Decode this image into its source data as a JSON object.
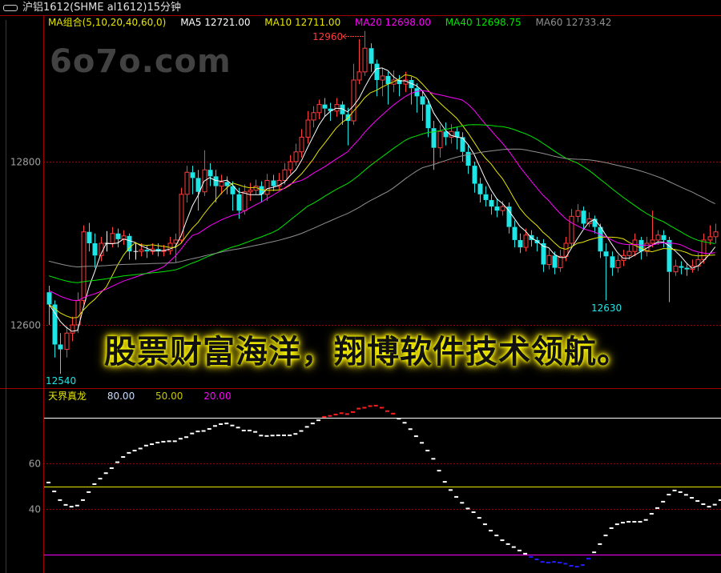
{
  "window": {
    "title": "沪铝1612(SHME al1612)15分钟",
    "icon": "link-icon"
  },
  "watermark": "6o7o.com",
  "banner": "股票财富海洋，翔博软件技术领航。",
  "ma_legend": {
    "group": {
      "label": "MA组合(5,10,20,40,60,0)",
      "color": "#e6e600"
    },
    "items": [
      {
        "label": "MA5 12721.00",
        "color": "#ffffff"
      },
      {
        "label": "MA10 12711.00",
        "color": "#e6e600"
      },
      {
        "label": "MA20 12698.00",
        "color": "#ff00ff"
      },
      {
        "label": "MA40 12698.75",
        "color": "#00e600"
      },
      {
        "label": "MA60 12733.42",
        "color": "#909090"
      }
    ]
  },
  "indicator_legend": {
    "name": {
      "label": "天界真龙",
      "color": "#e6e600"
    },
    "items": [
      {
        "label": "80.00",
        "color": "#c8dcff"
      },
      {
        "label": "50.00",
        "color": "#c8c800"
      },
      {
        "label": "20.00",
        "color": "#ff00ff"
      }
    ]
  },
  "chart_data": [
    {
      "type": "candlestick",
      "title": "沪铝1612(SHME al1612)15分钟",
      "y_ticks": [
        "12800",
        "12600"
      ],
      "ylim": [
        12540,
        12965
      ],
      "grid": "dotted lines at y ticks",
      "colors": {
        "up": "#ff3c3c",
        "down": "#1ee6e6",
        "flat": "#ffffff"
      },
      "ma_periods": [
        5,
        10,
        20,
        40,
        60
      ],
      "ma_colors": [
        "#ffffff",
        "#e6e600",
        "#ff00ff",
        "#00e600",
        "#909090"
      ],
      "annotations": [
        {
          "text": "12960",
          "price": 12960,
          "color": "#ff3c3c"
        },
        {
          "text": "12630",
          "price": 12630,
          "color": "#1ee6e6"
        },
        {
          "text": "12540",
          "price": 12540,
          "color": "#1ee6e6"
        }
      ],
      "ohlc": [
        [
          12640,
          12648,
          12600,
          12625
        ],
        [
          12625,
          12630,
          12560,
          12576
        ],
        [
          12576,
          12590,
          12540,
          12570
        ],
        [
          12570,
          12598,
          12560,
          12590
        ],
        [
          12590,
          12610,
          12580,
          12600
        ],
        [
          12600,
          12640,
          12590,
          12630
        ],
        [
          12630,
          12722,
          12625,
          12714
        ],
        [
          12714,
          12725,
          12690,
          12700
        ],
        [
          12700,
          12712,
          12670,
          12685
        ],
        [
          12685,
          12708,
          12678,
          12700
        ],
        [
          12700,
          12715,
          12690,
          12700
        ],
        [
          12700,
          12720,
          12695,
          12712
        ],
        [
          12712,
          12718,
          12695,
          12705
        ],
        [
          12705,
          12716,
          12698,
          12709
        ],
        [
          12709,
          12712,
          12680,
          12690
        ],
        [
          12690,
          12700,
          12680,
          12690
        ],
        [
          12690,
          12700,
          12684,
          12692
        ],
        [
          12692,
          12698,
          12682,
          12690
        ],
        [
          12690,
          12700,
          12686,
          12693
        ],
        [
          12693,
          12700,
          12684,
          12690
        ],
        [
          12690,
          12698,
          12684,
          12691
        ],
        [
          12691,
          12708,
          12686,
          12700
        ],
        [
          12700,
          12712,
          12676,
          12704
        ],
        [
          12704,
          12768,
          12700,
          12760
        ],
        [
          12760,
          12795,
          12750,
          12787
        ],
        [
          12787,
          12795,
          12760,
          12780
        ],
        [
          12780,
          12790,
          12740,
          12763
        ],
        [
          12763,
          12814,
          12758,
          12790
        ],
        [
          12790,
          12798,
          12770,
          12782
        ],
        [
          12782,
          12790,
          12750,
          12770
        ],
        [
          12770,
          12784,
          12760,
          12775
        ],
        [
          12775,
          12782,
          12760,
          12770
        ],
        [
          12770,
          12776,
          12740,
          12760
        ],
        [
          12760,
          12768,
          12730,
          12740
        ],
        [
          12740,
          12772,
          12735,
          12763
        ],
        [
          12763,
          12774,
          12752,
          12765
        ],
        [
          12765,
          12778,
          12760,
          12770
        ],
        [
          12770,
          12776,
          12750,
          12760
        ],
        [
          12760,
          12785,
          12752,
          12777
        ],
        [
          12777,
          12784,
          12764,
          12770
        ],
        [
          12770,
          12786,
          12766,
          12777
        ],
        [
          12777,
          12798,
          12772,
          12790
        ],
        [
          12790,
          12808,
          12785,
          12800
        ],
        [
          12800,
          12822,
          12795,
          12812
        ],
        [
          12812,
          12840,
          12805,
          12830
        ],
        [
          12830,
          12862,
          12822,
          12851
        ],
        [
          12851,
          12868,
          12842,
          12860
        ],
        [
          12860,
          12876,
          12852,
          12870
        ],
        [
          12870,
          12878,
          12855,
          12865
        ],
        [
          12865,
          12872,
          12850,
          12862
        ],
        [
          12862,
          12878,
          12855,
          12870
        ],
        [
          12870,
          12874,
          12845,
          12858
        ],
        [
          12858,
          12866,
          12820,
          12850
        ],
        [
          12850,
          12920,
          12845,
          12900
        ],
        [
          12900,
          12950,
          12895,
          12910
        ],
        [
          12910,
          12960,
          12905,
          12939
        ],
        [
          12939,
          12945,
          12910,
          12920
        ],
        [
          12920,
          12925,
          12880,
          12900
        ],
        [
          12900,
          12915,
          12880,
          12905
        ],
        [
          12905,
          12910,
          12870,
          12895
        ],
        [
          12895,
          12912,
          12885,
          12900
        ],
        [
          12900,
          12906,
          12880,
          12895
        ],
        [
          12895,
          12910,
          12885,
          12900
        ],
        [
          12900,
          12904,
          12870,
          12890
        ],
        [
          12890,
          12896,
          12860,
          12880
        ],
        [
          12880,
          12886,
          12850,
          12870
        ],
        [
          12870,
          12876,
          12830,
          12841
        ],
        [
          12841,
          12850,
          12790,
          12817
        ],
        [
          12817,
          12845,
          12805,
          12837
        ],
        [
          12837,
          12848,
          12820,
          12830
        ],
        [
          12830,
          12846,
          12822,
          12837
        ],
        [
          12837,
          12842,
          12815,
          12830
        ],
        [
          12830,
          12836,
          12800,
          12812
        ],
        [
          12812,
          12820,
          12785,
          12795
        ],
        [
          12795,
          12800,
          12762,
          12773
        ],
        [
          12773,
          12780,
          12750,
          12760
        ],
        [
          12760,
          12770,
          12745,
          12753
        ],
        [
          12753,
          12760,
          12735,
          12745
        ],
        [
          12745,
          12755,
          12732,
          12740
        ],
        [
          12740,
          12752,
          12734,
          12745
        ],
        [
          12745,
          12750,
          12712,
          12720
        ],
        [
          12720,
          12728,
          12695,
          12704
        ],
        [
          12704,
          12712,
          12688,
          12695
        ],
        [
          12695,
          12718,
          12690,
          12710
        ],
        [
          12710,
          12716,
          12696,
          12704
        ],
        [
          12704,
          12708,
          12690,
          12700
        ],
        [
          12700,
          12705,
          12665,
          12674
        ],
        [
          12674,
          12692,
          12668,
          12685
        ],
        [
          12685,
          12690,
          12662,
          12670
        ],
        [
          12670,
          12692,
          12665,
          12684
        ],
        [
          12684,
          12708,
          12678,
          12700
        ],
        [
          12700,
          12742,
          12695,
          12733
        ],
        [
          12733,
          12748,
          12726,
          12740
        ],
        [
          12740,
          12745,
          12718,
          12724
        ],
        [
          12724,
          12738,
          12720,
          12730
        ],
        [
          12730,
          12734,
          12712,
          12720
        ],
        [
          12720,
          12724,
          12682,
          12690
        ],
        [
          12690,
          12700,
          12630,
          12684
        ],
        [
          12684,
          12690,
          12660,
          12670
        ],
        [
          12670,
          12686,
          12664,
          12679
        ],
        [
          12679,
          12692,
          12672,
          12685
        ],
        [
          12685,
          12698,
          12680,
          12690
        ],
        [
          12690,
          12712,
          12684,
          12704
        ],
        [
          12704,
          12708,
          12680,
          12690
        ],
        [
          12690,
          12708,
          12684,
          12700
        ],
        [
          12700,
          12740,
          12695,
          12704
        ],
        [
          12704,
          12716,
          12698,
          12710
        ],
        [
          12710,
          12716,
          12695,
          12704
        ],
        [
          12704,
          12708,
          12628,
          12665
        ],
        [
          12665,
          12680,
          12660,
          12672
        ],
        [
          12672,
          12678,
          12662,
          12670
        ],
        [
          12670,
          12676,
          12660,
          12668
        ],
        [
          12668,
          12680,
          12664,
          12672
        ],
        [
          12672,
          12688,
          12666,
          12680
        ],
        [
          12680,
          12712,
          12675,
          12704
        ],
        [
          12704,
          12722,
          12698,
          12708
        ],
        [
          12708,
          12724,
          12700,
          12714
        ]
      ]
    },
    {
      "type": "dot-line",
      "title": "天界真龙",
      "y_ticks": [
        "60",
        "40"
      ],
      "ylim": [
        12,
        89
      ],
      "levels": [
        80,
        50,
        20
      ],
      "level_colors": [
        "#ffffff",
        "#e6e600",
        "#ff00ff"
      ],
      "colors": {
        "above_80": "#ff1e1e",
        "below_20": "#1e1eff",
        "normal": "#ffffff"
      },
      "values": [
        51.6,
        47.7,
        43.9,
        41.8,
        41,
        41.5,
        43.9,
        47.4,
        50.9,
        53.3,
        55.7,
        57.9,
        60.5,
        62.8,
        64.6,
        65.6,
        66.5,
        67.8,
        68.4,
        69.1,
        69.5,
        69.7,
        69.7,
        70.8,
        71.5,
        73.1,
        74,
        74.2,
        75.1,
        76.4,
        77.2,
        77.5,
        76.6,
        75.7,
        74.4,
        74.4,
        73.8,
        72.2,
        72,
        72.2,
        72.3,
        72.3,
        72.3,
        72.9,
        74.2,
        76,
        77.5,
        78.9,
        80.4,
        80.8,
        81.4,
        82,
        81.6,
        82.5,
        84,
        84.4,
        85.1,
        85.3,
        84.4,
        82.9,
        81.8,
        79.6,
        77.8,
        75,
        71.9,
        69,
        65.6,
        62,
        56.8,
        51.9,
        48.3,
        45.3,
        42.7,
        40.2,
        38.6,
        36.1,
        33.3,
        30.5,
        28.4,
        26.3,
        24.6,
        23.3,
        21.8,
        20.4,
        19,
        17.9,
        16.8,
        16.5,
        16.8,
        16.5,
        16,
        15.1,
        14.7,
        15.4,
        18.2,
        21,
        24.6,
        28.4,
        31.6,
        33.3,
        34,
        34.4,
        34.4,
        34.4,
        35.2,
        37.9,
        40.4,
        43.2,
        46.3,
        48.1,
        47.4,
        46.2,
        44.9,
        43.5,
        42.1,
        41,
        41.9,
        43.9,
        47.1
      ]
    }
  ]
}
